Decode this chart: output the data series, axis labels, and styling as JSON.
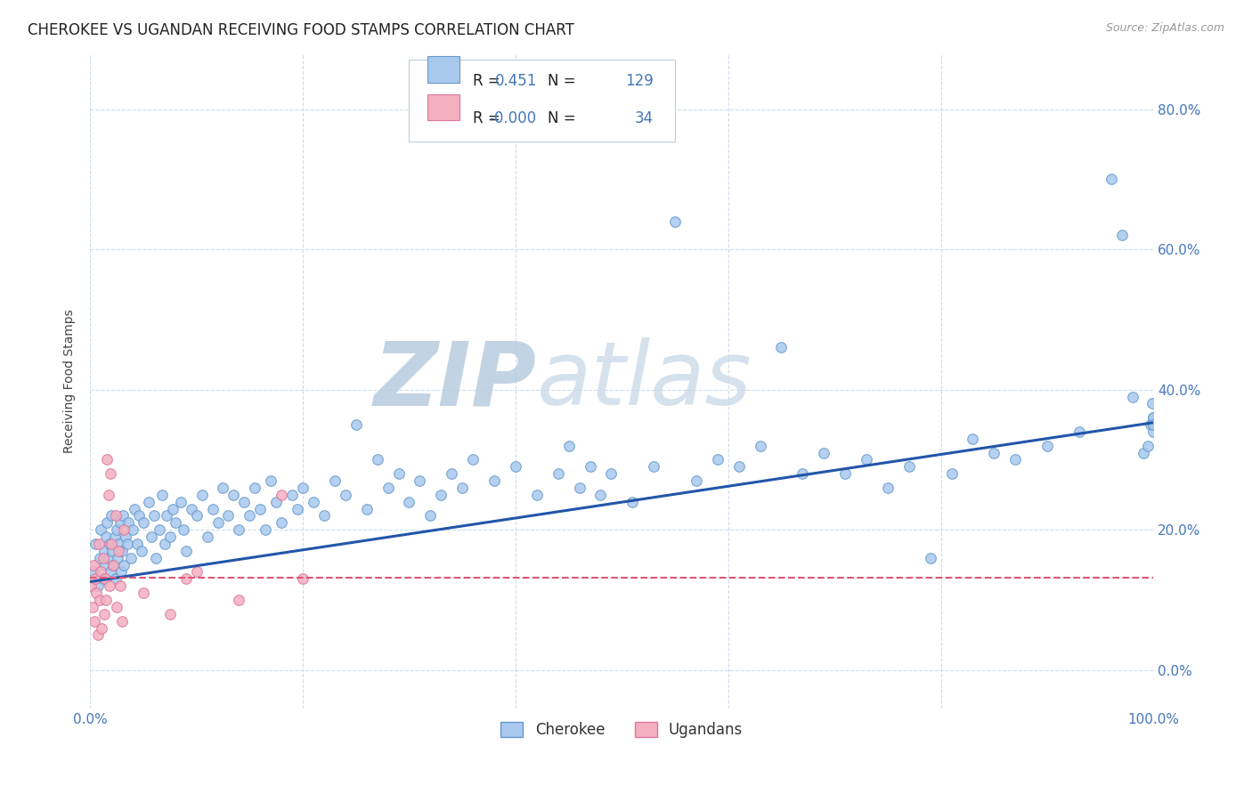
{
  "title": "CHEROKEE VS UGANDAN RECEIVING FOOD STAMPS CORRELATION CHART",
  "source": "Source: ZipAtlas.com",
  "ylabel": "Receiving Food Stamps",
  "xlim": [
    0.0,
    1.0
  ],
  "ylim": [
    -0.055,
    0.88
  ],
  "x_ticks": [
    0.0,
    0.2,
    0.4,
    0.6,
    0.8,
    1.0
  ],
  "x_tick_labels": [
    "0.0%",
    "",
    "",
    "",
    "",
    "100.0%"
  ],
  "y_ticks": [
    0.0,
    0.2,
    0.4,
    0.6,
    0.8
  ],
  "y_tick_labels_right": [
    "0.0%",
    "20.0%",
    "40.0%",
    "60.0%",
    "80.0%"
  ],
  "cherokee_color": "#a8c8ee",
  "cherokee_edge": "#6699cc",
  "ugandan_color": "#f4afc0",
  "ugandan_edge": "#dd7799",
  "trendline_cherokee": "#2255aa",
  "trendline_ugandan": "#dd5577",
  "watermark_color": "#c8d8ec",
  "R_cherokee": 0.451,
  "N_cherokee": 129,
  "R_ugandan": -0.0,
  "N_ugandan": 34,
  "cherokee_x": [
    0.003,
    0.005,
    0.007,
    0.009,
    0.01,
    0.012,
    0.013,
    0.014,
    0.015,
    0.016,
    0.017,
    0.018,
    0.019,
    0.02,
    0.021,
    0.022,
    0.023,
    0.024,
    0.025,
    0.026,
    0.027,
    0.028,
    0.029,
    0.03,
    0.031,
    0.032,
    0.033,
    0.035,
    0.036,
    0.038,
    0.04,
    0.042,
    0.044,
    0.046,
    0.048,
    0.05,
    0.055,
    0.058,
    0.06,
    0.062,
    0.065,
    0.068,
    0.07,
    0.072,
    0.075,
    0.078,
    0.08,
    0.085,
    0.088,
    0.09,
    0.095,
    0.1,
    0.105,
    0.11,
    0.115,
    0.12,
    0.125,
    0.13,
    0.135,
    0.14,
    0.145,
    0.15,
    0.155,
    0.16,
    0.165,
    0.17,
    0.175,
    0.18,
    0.19,
    0.195,
    0.2,
    0.21,
    0.22,
    0.23,
    0.24,
    0.25,
    0.26,
    0.27,
    0.28,
    0.29,
    0.3,
    0.31,
    0.32,
    0.33,
    0.34,
    0.35,
    0.36,
    0.38,
    0.4,
    0.42,
    0.44,
    0.45,
    0.46,
    0.47,
    0.48,
    0.49,
    0.51,
    0.53,
    0.55,
    0.57,
    0.59,
    0.61,
    0.63,
    0.65,
    0.67,
    0.69,
    0.71,
    0.73,
    0.75,
    0.77,
    0.79,
    0.81,
    0.83,
    0.85,
    0.87,
    0.9,
    0.93,
    0.96,
    0.97,
    0.98,
    0.99,
    0.995,
    0.997,
    0.999,
    1.0,
    1.0,
    1.0,
    1.0,
    1.0
  ],
  "cherokee_y": [
    0.14,
    0.18,
    0.12,
    0.16,
    0.2,
    0.13,
    0.17,
    0.15,
    0.19,
    0.21,
    0.16,
    0.18,
    0.14,
    0.22,
    0.17,
    0.15,
    0.19,
    0.13,
    0.2,
    0.16,
    0.18,
    0.21,
    0.14,
    0.17,
    0.22,
    0.15,
    0.19,
    0.18,
    0.21,
    0.16,
    0.2,
    0.23,
    0.18,
    0.22,
    0.17,
    0.21,
    0.24,
    0.19,
    0.22,
    0.16,
    0.2,
    0.25,
    0.18,
    0.22,
    0.19,
    0.23,
    0.21,
    0.24,
    0.2,
    0.17,
    0.23,
    0.22,
    0.25,
    0.19,
    0.23,
    0.21,
    0.26,
    0.22,
    0.25,
    0.2,
    0.24,
    0.22,
    0.26,
    0.23,
    0.2,
    0.27,
    0.24,
    0.21,
    0.25,
    0.23,
    0.26,
    0.24,
    0.22,
    0.27,
    0.25,
    0.35,
    0.23,
    0.3,
    0.26,
    0.28,
    0.24,
    0.27,
    0.22,
    0.25,
    0.28,
    0.26,
    0.3,
    0.27,
    0.29,
    0.25,
    0.28,
    0.32,
    0.26,
    0.29,
    0.25,
    0.28,
    0.24,
    0.29,
    0.64,
    0.27,
    0.3,
    0.29,
    0.32,
    0.46,
    0.28,
    0.31,
    0.28,
    0.3,
    0.26,
    0.29,
    0.16,
    0.28,
    0.33,
    0.31,
    0.3,
    0.32,
    0.34,
    0.7,
    0.62,
    0.39,
    0.31,
    0.32,
    0.35,
    0.38,
    0.36,
    0.35,
    0.34,
    0.36,
    0.35
  ],
  "ugandan_x": [
    0.001,
    0.002,
    0.003,
    0.004,
    0.005,
    0.006,
    0.007,
    0.008,
    0.009,
    0.01,
    0.011,
    0.012,
    0.013,
    0.014,
    0.015,
    0.016,
    0.017,
    0.018,
    0.019,
    0.02,
    0.022,
    0.024,
    0.025,
    0.027,
    0.028,
    0.03,
    0.032,
    0.05,
    0.075,
    0.09,
    0.1,
    0.14,
    0.18,
    0.2
  ],
  "ugandan_y": [
    0.12,
    0.09,
    0.15,
    0.07,
    0.13,
    0.11,
    0.05,
    0.18,
    0.1,
    0.14,
    0.06,
    0.16,
    0.08,
    0.13,
    0.1,
    0.3,
    0.25,
    0.12,
    0.28,
    0.18,
    0.15,
    0.22,
    0.09,
    0.17,
    0.12,
    0.07,
    0.2,
    0.11,
    0.08,
    0.13,
    0.14,
    0.1,
    0.25,
    0.13
  ],
  "trendline_cherokee_x0": 0.0,
  "trendline_cherokee_y0": 0.126,
  "trendline_cherokee_x1": 1.0,
  "trendline_cherokee_y1": 0.353,
  "trendline_ugandan_flat": 0.132,
  "background_color": "#ffffff",
  "grid_color": "#ccddee",
  "title_fontsize": 12,
  "axis_label_fontsize": 10,
  "tick_fontsize": 11,
  "tick_color": "#4477bb",
  "legend_fontsize": 12
}
